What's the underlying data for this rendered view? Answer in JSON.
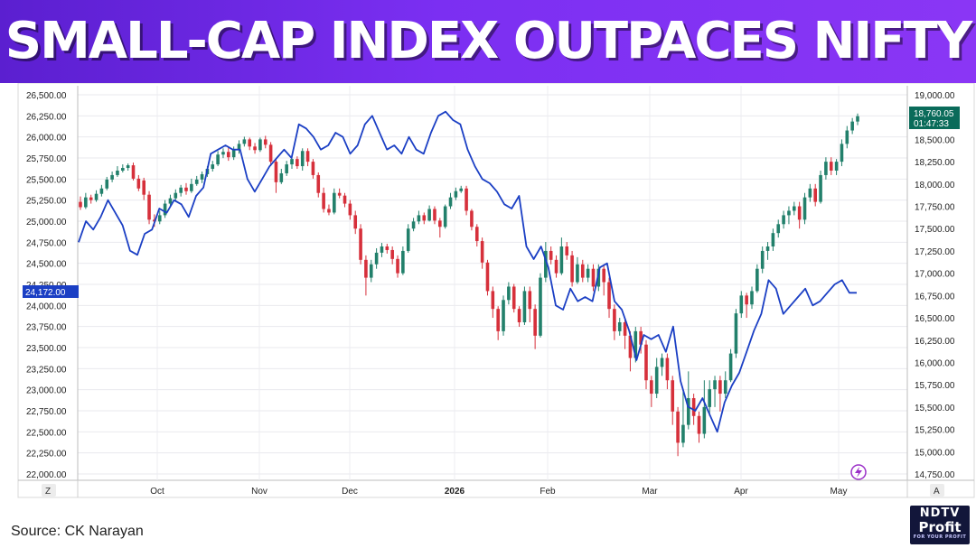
{
  "header": {
    "title": "SMALL-CAP INDEX OUTPACES NIFTY"
  },
  "footer": {
    "source": "Source: CK Narayan"
  },
  "logo": {
    "line1": "NDTV",
    "line2": "Profit",
    "line3": "FOR YOUR PROFIT"
  },
  "chart_controls": {
    "left_button": "Z",
    "right_button": "A",
    "lightning_icon": "lightning-icon"
  },
  "colors": {
    "up": "#22806b",
    "down": "#d6303b",
    "line": "#1b3fc4",
    "banner": "#7b2ff2",
    "last_price_bg": "#0a6b5a"
  },
  "chart_data": {
    "type": "candlestick+line",
    "x_ticks": [
      "Oct",
      "Nov",
      "Dec",
      "2026",
      "Feb",
      "Mar",
      "Apr",
      "May"
    ],
    "left_axis": {
      "ticks": [
        "26,500.00",
        "26,250.00",
        "26,000.00",
        "25,750.00",
        "25,500.00",
        "25,250.00",
        "25,000.00",
        "24,750.00",
        "24,500.00",
        "24,250.00",
        "24,000.00",
        "23,750.00",
        "23,500.00",
        "23,250.00",
        "23,000.00",
        "22,750.00",
        "22,500.00",
        "22,250.00",
        "22,000.00"
      ],
      "range": [
        22000,
        26500
      ],
      "last_label": "24,172.00"
    },
    "right_axis": {
      "ticks": [
        "19,000.00",
        "18,750.00",
        "18,500.00",
        "18,250.00",
        "18,000.00",
        "17,750.00",
        "17,500.00",
        "17,250.00",
        "17,000.00",
        "16,750.00",
        "16,500.00",
        "16,250.00",
        "16,000.00",
        "15,750.00",
        "15,500.00",
        "15,250.00",
        "15,000.00",
        "14,750.00"
      ],
      "range": [
        14750,
        19000
      ],
      "last_label": "18,760.05",
      "countdown": "01:47:33"
    },
    "nifty_line": [
      24750,
      25000,
      24900,
      25050,
      25250,
      25100,
      24950,
      24650,
      24600,
      24850,
      24900,
      25150,
      25100,
      25250,
      25200,
      25050,
      25300,
      25400,
      25800,
      25850,
      25900,
      25850,
      25850,
      25500,
      25350,
      25500,
      25650,
      25750,
      25850,
      25750,
      26150,
      26100,
      26000,
      25850,
      25900,
      26050,
      26000,
      25800,
      25900,
      26150,
      26250,
      26050,
      25850,
      25900,
      25800,
      26000,
      25850,
      25800,
      26050,
      26250,
      26300,
      26200,
      26150,
      25850,
      25650,
      25500,
      25450,
      25350,
      25200,
      25150,
      25300,
      24700,
      24550,
      24700,
      24450,
      24000,
      23950,
      24200,
      24050,
      24100,
      24050,
      24450,
      24500,
      24050,
      23950,
      23700,
      23350,
      23650,
      23600,
      23650,
      23450,
      23750,
      23100,
      22800,
      22750,
      22900,
      22700,
      22500,
      22850,
      23050,
      23200,
      23450,
      23700,
      23900,
      24300,
      24200,
      23900,
      24000,
      24100,
      24200,
      24000,
      24050,
      24150,
      24250,
      24300,
      24150,
      24150
    ],
    "smallcap_candles": [
      [
        17800,
        17740,
        17860,
        17710
      ],
      [
        17740,
        17850,
        17900,
        17720
      ],
      [
        17850,
        17820,
        17880,
        17780
      ],
      [
        17820,
        17890,
        17930,
        17800
      ],
      [
        17890,
        17950,
        17990,
        17860
      ],
      [
        17950,
        18050,
        18080,
        17930
      ],
      [
        18050,
        18100,
        18140,
        18020
      ],
      [
        18100,
        18150,
        18200,
        18080
      ],
      [
        18150,
        18180,
        18220,
        18130
      ],
      [
        18180,
        18210,
        18230,
        18150
      ],
      [
        18210,
        18060,
        18240,
        18040
      ],
      [
        18060,
        17950,
        18100,
        17920
      ],
      [
        18040,
        17880,
        18070,
        17820
      ],
      [
        17880,
        17600,
        17920,
        17550
      ],
      [
        17600,
        17580,
        17660,
        17520
      ],
      [
        17580,
        17650,
        17700,
        17550
      ],
      [
        17650,
        17780,
        17820,
        17620
      ],
      [
        17780,
        17840,
        17880,
        17740
      ],
      [
        17840,
        17900,
        17940,
        17800
      ],
      [
        17900,
        17960,
        17990,
        17860
      ],
      [
        17960,
        17920,
        18010,
        17880
      ],
      [
        17920,
        18000,
        18060,
        17900
      ],
      [
        18000,
        18050,
        18090,
        17980
      ],
      [
        18050,
        18110,
        18140,
        18010
      ],
      [
        18110,
        18170,
        18200,
        18080
      ],
      [
        18170,
        18220,
        18260,
        18140
      ],
      [
        18220,
        18330,
        18370,
        18200
      ],
      [
        18330,
        18360,
        18400,
        18290
      ],
      [
        18360,
        18300,
        18420,
        18260
      ],
      [
        18300,
        18380,
        18420,
        18270
      ],
      [
        18380,
        18450,
        18490,
        18340
      ],
      [
        18450,
        18500,
        18530,
        18420
      ],
      [
        18500,
        18420,
        18520,
        18380
      ],
      [
        18420,
        18380,
        18460,
        18340
      ],
      [
        18380,
        18500,
        18520,
        18360
      ],
      [
        18500,
        18440,
        18540,
        18400
      ],
      [
        18440,
        18250,
        18470,
        18200
      ],
      [
        18250,
        18020,
        18280,
        17900
      ],
      [
        18020,
        18120,
        18170,
        18000
      ],
      [
        18120,
        18220,
        18260,
        18090
      ],
      [
        18220,
        18280,
        18300,
        18170
      ],
      [
        18280,
        18200,
        18310,
        18170
      ],
      [
        18200,
        18370,
        18400,
        18150
      ],
      [
        18370,
        18250,
        18400,
        18200
      ],
      [
        18250,
        18100,
        18280,
        18060
      ],
      [
        18100,
        17900,
        18130,
        17850
      ],
      [
        17900,
        17720,
        17960,
        17680
      ],
      [
        17720,
        17680,
        17770,
        17650
      ],
      [
        17680,
        17900,
        17950,
        17660
      ],
      [
        17900,
        17870,
        17950,
        17840
      ],
      [
        17870,
        17780,
        17900,
        17740
      ],
      [
        17780,
        17650,
        17820,
        17600
      ],
      [
        17650,
        17500,
        17700,
        17440
      ],
      [
        17500,
        17150,
        17550,
        17100
      ],
      [
        17150,
        16950,
        17200,
        16750
      ],
      [
        16950,
        17100,
        17150,
        16900
      ],
      [
        17100,
        17230,
        17280,
        17050
      ],
      [
        17230,
        17300,
        17340,
        17180
      ],
      [
        17300,
        17260,
        17330,
        17220
      ],
      [
        17260,
        17160,
        17300,
        17100
      ],
      [
        17160,
        17000,
        17200,
        16950
      ],
      [
        17000,
        17250,
        17300,
        16980
      ],
      [
        17250,
        17500,
        17550,
        17230
      ],
      [
        17500,
        17580,
        17620,
        17470
      ],
      [
        17580,
        17650,
        17700,
        17550
      ],
      [
        17650,
        17590,
        17680,
        17550
      ],
      [
        17590,
        17720,
        17760,
        17580
      ],
      [
        17720,
        17590,
        17750,
        17550
      ],
      [
        17590,
        17520,
        17620,
        17400
      ],
      [
        17520,
        17750,
        17770,
        17500
      ],
      [
        17750,
        17850,
        17900,
        17720
      ],
      [
        17850,
        17920,
        17960,
        17820
      ],
      [
        17920,
        17950,
        17980,
        17900
      ],
      [
        17950,
        17700,
        17980,
        17650
      ],
      [
        17700,
        17520,
        17720,
        17480
      ],
      [
        17520,
        17360,
        17550,
        17300
      ],
      [
        17360,
        17120,
        17400,
        17050
      ],
      [
        17120,
        16800,
        17150,
        16750
      ],
      [
        16800,
        16600,
        16850,
        16500
      ],
      [
        16600,
        16350,
        16630,
        16250
      ],
      [
        16350,
        16700,
        16750,
        16300
      ],
      [
        16700,
        16850,
        16900,
        16650
      ],
      [
        16850,
        16600,
        16880,
        16560
      ],
      [
        16600,
        16450,
        16630,
        16400
      ],
      [
        16450,
        16800,
        16850,
        16420
      ],
      [
        16800,
        16600,
        16850,
        16450
      ],
      [
        16600,
        16300,
        16650,
        16150
      ],
      [
        16300,
        16950,
        17000,
        16280
      ],
      [
        16950,
        17250,
        17350,
        16900
      ],
      [
        17250,
        17150,
        17300,
        17100
      ],
      [
        17150,
        17000,
        17200,
        16950
      ],
      [
        17000,
        17300,
        17400,
        16980
      ],
      [
        17300,
        17200,
        17350,
        17150
      ],
      [
        17200,
        16900,
        17250,
        16850
      ],
      [
        16900,
        17100,
        17180,
        16880
      ],
      [
        17100,
        16950,
        17150,
        16900
      ],
      [
        16950,
        17050,
        17100,
        16900
      ],
      [
        17050,
        16850,
        17100,
        16800
      ],
      [
        16850,
        17050,
        17100,
        16800
      ],
      [
        17050,
        16900,
        17100,
        16750
      ],
      [
        16900,
        16600,
        16950,
        16500
      ],
      [
        16600,
        16350,
        16650,
        16250
      ],
      [
        16350,
        16450,
        16500,
        16300
      ],
      [
        16450,
        16300,
        16500,
        16150
      ],
      [
        16300,
        16050,
        16350,
        15900
      ],
      [
        16050,
        16350,
        16400,
        16000
      ],
      [
        16350,
        16200,
        16400,
        16100
      ],
      [
        16200,
        15800,
        16250,
        15700
      ],
      [
        15800,
        15650,
        15850,
        15500
      ],
      [
        15650,
        15950,
        16050,
        15600
      ],
      [
        15950,
        16050,
        16100,
        15850
      ],
      [
        16050,
        15800,
        16100,
        15700
      ],
      [
        15800,
        15450,
        15850,
        15300
      ],
      [
        15450,
        15100,
        15500,
        14950
      ],
      [
        15100,
        15300,
        15700,
        15050
      ],
      [
        15300,
        15600,
        15900,
        15250
      ],
      [
        15600,
        15400,
        15650,
        15300
      ],
      [
        15400,
        15200,
        15450,
        15100
      ],
      [
        15200,
        15500,
        15800,
        15150
      ],
      [
        15500,
        15700,
        15800,
        15400
      ],
      [
        15700,
        15800,
        15850,
        15500
      ],
      [
        15800,
        15650,
        15850,
        15450
      ],
      [
        15650,
        15800,
        15900,
        15600
      ],
      [
        15800,
        16100,
        16150,
        15780
      ],
      [
        16100,
        16550,
        16600,
        16050
      ],
      [
        16550,
        16750,
        16800,
        16500
      ],
      [
        16750,
        16650,
        16780,
        16500
      ],
      [
        16650,
        16800,
        16850,
        16600
      ],
      [
        16800,
        17050,
        17100,
        16780
      ],
      [
        17050,
        17250,
        17300,
        17000
      ],
      [
        17250,
        17300,
        17350,
        17150
      ],
      [
        17300,
        17450,
        17500,
        17250
      ],
      [
        17450,
        17550,
        17600,
        17400
      ],
      [
        17550,
        17650,
        17700,
        17500
      ],
      [
        17650,
        17700,
        17750,
        17550
      ],
      [
        17700,
        17750,
        17800,
        17650
      ],
      [
        17750,
        17600,
        17800,
        17500
      ],
      [
        17600,
        17850,
        17900,
        17550
      ],
      [
        17850,
        17950,
        18000,
        17800
      ],
      [
        17950,
        17800,
        18000,
        17750
      ],
      [
        17800,
        18100,
        18150,
        17780
      ],
      [
        18100,
        18250,
        18300,
        18050
      ],
      [
        18250,
        18150,
        18300,
        18100
      ],
      [
        18150,
        18250,
        18280,
        18100
      ],
      [
        18250,
        18450,
        18500,
        18200
      ],
      [
        18450,
        18600,
        18650,
        18400
      ],
      [
        18600,
        18700,
        18740,
        18560
      ],
      [
        18700,
        18760,
        18790,
        18660
      ]
    ]
  }
}
